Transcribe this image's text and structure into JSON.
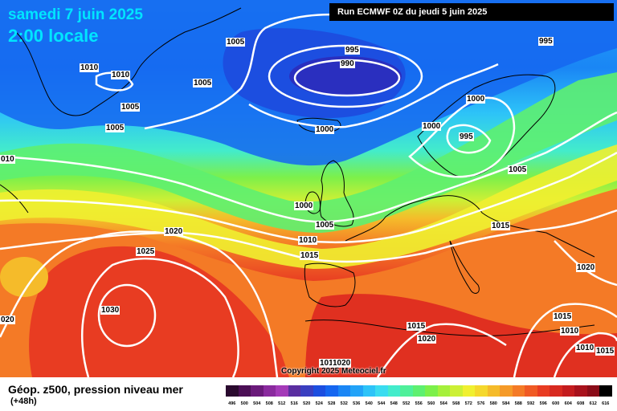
{
  "header": {
    "date": "samedi 7 juin 2025",
    "time": "2:00 locale",
    "run": "Run ECMWF 0Z du jeudi 5 juin 2025"
  },
  "copyright": "Copyright 2025 Meteociel.fr",
  "legend": {
    "title": "Géop. z500, pression niveau mer",
    "subtitle": "(+48h)",
    "levels": [
      "496",
      "500",
      "504",
      "508",
      "512",
      "516",
      "520",
      "524",
      "528",
      "532",
      "536",
      "540",
      "544",
      "548",
      "552",
      "556",
      "560",
      "564",
      "568",
      "572",
      "576",
      "580",
      "584",
      "588",
      "592",
      "596",
      "600",
      "604",
      "608",
      "612",
      "616"
    ],
    "colors": [
      "#2a0a2e",
      "#4b0f55",
      "#6a1a7a",
      "#8a2a9e",
      "#a43ab8",
      "#5a2ea0",
      "#3a3fc0",
      "#1c4ee0",
      "#1566f0",
      "#1a86f5",
      "#22a3f8",
      "#2dc3f8",
      "#3adcf0",
      "#43eccb",
      "#4ff09a",
      "#5ef070",
      "#7cf04a",
      "#a5f03c",
      "#ccf035",
      "#f0f030",
      "#f5d82c",
      "#f5bb2a",
      "#f59a28",
      "#f47a26",
      "#f05a24",
      "#e83c22",
      "#d82a20",
      "#c41c1e",
      "#a8121c",
      "#8a0c18",
      "#000000"
    ]
  },
  "isobars": [
    {
      "id": "995-top",
      "label": "995"
    },
    {
      "id": "990",
      "label": "990"
    },
    {
      "id": "995-right",
      "label": "995"
    },
    {
      "id": "1005-a",
      "label": "1005"
    },
    {
      "id": "1010-a",
      "label": "1010"
    },
    {
      "id": "1010-b",
      "label": "1010"
    },
    {
      "id": "1005-b",
      "label": "1005"
    },
    {
      "id": "1005-c",
      "label": "1005"
    },
    {
      "id": "1005-d",
      "label": "1005"
    },
    {
      "id": "1000-a",
      "label": "1000"
    },
    {
      "id": "1000-b",
      "label": "1000"
    },
    {
      "id": "1000-c",
      "label": "1000"
    },
    {
      "id": "995-scand",
      "label": "995"
    },
    {
      "id": "1005-e",
      "label": "1005"
    },
    {
      "id": "1010-left",
      "label": "010"
    },
    {
      "id": "1000-d",
      "label": "1000"
    },
    {
      "id": "1005-f",
      "label": "1005"
    },
    {
      "id": "1010-c",
      "label": "1010"
    },
    {
      "id": "1015-a",
      "label": "1015"
    },
    {
      "id": "1015-b",
      "label": "1015"
    },
    {
      "id": "1020-a",
      "label": "1020"
    },
    {
      "id": "1025",
      "label": "1025"
    },
    {
      "id": "1030",
      "label": "1030"
    },
    {
      "id": "020-left",
      "label": "020"
    },
    {
      "id": "1020-b",
      "label": "1020"
    },
    {
      "id": "1015-c",
      "label": "1015"
    },
    {
      "id": "1010-d",
      "label": "1010"
    },
    {
      "id": "1010-e",
      "label": "1010"
    },
    {
      "id": "1015-d",
      "label": "1015"
    },
    {
      "id": "1020-c",
      "label": "1020"
    },
    {
      "id": "1015-e",
      "label": "1015"
    },
    {
      "id": "1010-f",
      "label": "1010"
    },
    {
      "id": "1020-d",
      "label": "1020"
    }
  ]
}
